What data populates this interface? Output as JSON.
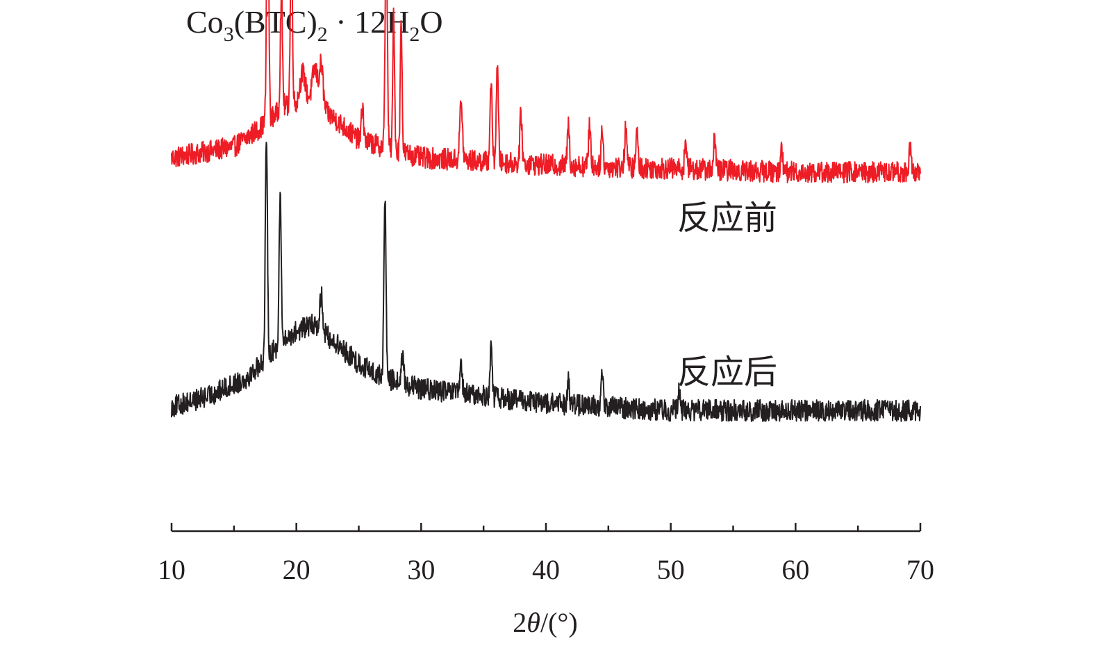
{
  "chart_data": {
    "type": "line",
    "title_parts": {
      "co": "Co",
      "sub3": "3",
      "btc": "(BTC)",
      "sub2": "2",
      "dot": " · ",
      "h12": "12H",
      "subh2": "2",
      "o": "O"
    },
    "xlabel_parts": {
      "two": "2",
      "theta": "θ",
      "unit": "/(°)"
    },
    "ylabel": "",
    "xlim": [
      10,
      70
    ],
    "xticks": [
      10,
      20,
      30,
      40,
      50,
      60,
      70
    ],
    "xtick_labels": [
      "10",
      "20",
      "30",
      "40",
      "50",
      "60",
      "70"
    ],
    "minor_xticks": [
      15,
      25,
      35,
      45,
      55,
      65
    ],
    "y_axis_visible": false,
    "grid": false,
    "legend": "inline labels to the right of each curve",
    "series": [
      {
        "name": "反应前",
        "color": "#ee1c25",
        "baseline_offset": 62,
        "noise_amplitude": 3.0,
        "background": [
          [
            10,
            52
          ],
          [
            15,
            55
          ],
          [
            17,
            60
          ],
          [
            19,
            66
          ],
          [
            21,
            68
          ],
          [
            23,
            63
          ],
          [
            25,
            57
          ],
          [
            27,
            55
          ],
          [
            30,
            52
          ],
          [
            40,
            50
          ],
          [
            50,
            49
          ],
          [
            60,
            48
          ],
          [
            70,
            48
          ]
        ],
        "peaks": [
          [
            17.7,
            72,
            0.12
          ],
          [
            18.8,
            32,
            0.12
          ],
          [
            19.6,
            46,
            0.12
          ],
          [
            20.5,
            8,
            0.3
          ],
          [
            21.5,
            10,
            0.3
          ],
          [
            22.0,
            12,
            0.2
          ],
          [
            25.3,
            10,
            0.12
          ],
          [
            27.2,
            62,
            0.12
          ],
          [
            27.8,
            38,
            0.1
          ],
          [
            28.4,
            38,
            0.1
          ],
          [
            33.2,
            16,
            0.15
          ],
          [
            35.6,
            22,
            0.12
          ],
          [
            36.1,
            26,
            0.12
          ],
          [
            38.0,
            14,
            0.12
          ],
          [
            41.8,
            11,
            0.12
          ],
          [
            43.5,
            12,
            0.12
          ],
          [
            44.5,
            10,
            0.12
          ],
          [
            46.4,
            12,
            0.12
          ],
          [
            47.3,
            10,
            0.12
          ],
          [
            51.2,
            8,
            0.12
          ],
          [
            53.5,
            9,
            0.12
          ],
          [
            58.9,
            6,
            0.12
          ],
          [
            69.2,
            8,
            0.12
          ]
        ]
      },
      {
        "name": "反应后",
        "color": "#231f20",
        "baseline_offset": 0,
        "noise_amplitude": 3.0,
        "background": [
          [
            10,
            45
          ],
          [
            13,
            48
          ],
          [
            16,
            53
          ],
          [
            18,
            60
          ],
          [
            20,
            66
          ],
          [
            21.5,
            68
          ],
          [
            23,
            63
          ],
          [
            25,
            57
          ],
          [
            27,
            53
          ],
          [
            30,
            50
          ],
          [
            40,
            46
          ],
          [
            50,
            44
          ],
          [
            60,
            44
          ],
          [
            70,
            44
          ]
        ],
        "peaks": [
          [
            17.6,
            60,
            0.12
          ],
          [
            18.7,
            42,
            0.12
          ],
          [
            22.0,
            10,
            0.15
          ],
          [
            27.1,
            50,
            0.12
          ],
          [
            28.5,
            8,
            0.12
          ],
          [
            33.2,
            8,
            0.12
          ],
          [
            35.6,
            14,
            0.12
          ],
          [
            41.8,
            7,
            0.12
          ],
          [
            44.5,
            9,
            0.12
          ],
          [
            50.7,
            6,
            0.12
          ]
        ]
      }
    ]
  }
}
